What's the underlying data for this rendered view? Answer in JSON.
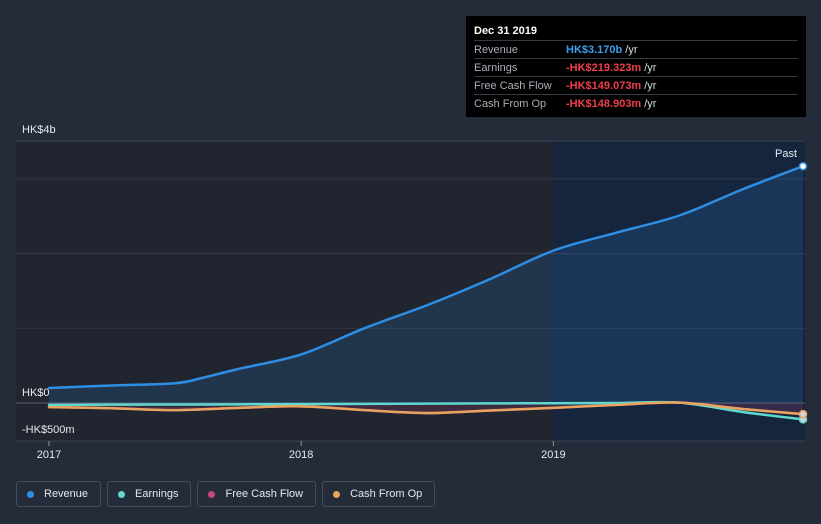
{
  "tooltip": {
    "title": "Dec 31 2019",
    "rows": [
      {
        "label": "Revenue",
        "value": "HK$3.170b",
        "unit": "/yr",
        "color": "#3aa0ee"
      },
      {
        "label": "Earnings",
        "value": "-HK$219.323m",
        "unit": "/yr",
        "color": "#ee3f4b"
      },
      {
        "label": "Free Cash Flow",
        "value": "-HK$149.073m",
        "unit": "/yr",
        "color": "#ee3f4b"
      },
      {
        "label": "Cash From Op",
        "value": "-HK$148.903m",
        "unit": "/yr",
        "color": "#ee3f4b"
      }
    ]
  },
  "legend": [
    {
      "label": "Revenue",
      "color": "#2e8ee4"
    },
    {
      "label": "Earnings",
      "color": "#5fd8cf"
    },
    {
      "label": "Free Cash Flow",
      "color": "#c7467f"
    },
    {
      "label": "Cash From Op",
      "color": "#e8a45c"
    }
  ],
  "chart_data": {
    "type": "line",
    "y_unit_labels": {
      "top": "HK$4b",
      "zero": "HK$0",
      "bottom": "-HK$500m"
    },
    "ylim": [
      -500,
      3500
    ],
    "gridlines": [
      3000,
      2000,
      1000,
      0
    ],
    "xlim": [
      2017.0,
      2019.99
    ],
    "x_ticks": [
      2017,
      2018,
      2019
    ],
    "x_tick_labels": [
      "2017",
      "2018",
      "2019"
    ],
    "past_label": "Past",
    "forecast_shade_start": 2019.0,
    "series": [
      {
        "name": "Revenue",
        "color": "#2e8ee4",
        "x": [
          2017.0,
          2017.25,
          2017.5,
          2017.6,
          2017.75,
          2018.0,
          2018.25,
          2018.5,
          2018.75,
          2019.0,
          2019.25,
          2019.5,
          2019.75,
          2019.99
        ],
        "y": [
          200,
          235,
          265,
          330,
          455,
          650,
          1000,
          1310,
          1660,
          2040,
          2280,
          2510,
          2860,
          3170
        ]
      },
      {
        "name": "Earnings",
        "color": "#5fd8cf",
        "x": [
          2017.0,
          2017.25,
          2017.5,
          2017.75,
          2018.0,
          2018.25,
          2018.5,
          2018.75,
          2019.0,
          2019.25,
          2019.5,
          2019.75,
          2019.99
        ],
        "y": [
          -25,
          -22,
          -20,
          -18,
          -15,
          -12,
          -8,
          -5,
          -3,
          0,
          5,
          -120,
          -219.323
        ]
      },
      {
        "name": "Free Cash Flow",
        "color": "#c7467f",
        "x": [
          2017.0,
          2017.25,
          2017.5,
          2017.75,
          2018.0,
          2018.25,
          2018.5,
          2018.75,
          2019.0,
          2019.25,
          2019.5,
          2019.75,
          2019.99
        ],
        "y": [
          -55,
          -70,
          -95,
          -65,
          -45,
          -95,
          -135,
          -100,
          -65,
          -25,
          5,
          -80,
          -149.073
        ]
      },
      {
        "name": "Cash From Op",
        "color": "#e8a45c",
        "x": [
          2017.0,
          2017.25,
          2017.5,
          2017.75,
          2018.0,
          2018.25,
          2018.5,
          2018.75,
          2019.0,
          2019.25,
          2019.5,
          2019.75,
          2019.99
        ],
        "y": [
          -55,
          -70,
          -95,
          -65,
          -45,
          -95,
          -135,
          -100,
          -65,
          -25,
          5,
          -80,
          -148.903
        ]
      }
    ]
  }
}
